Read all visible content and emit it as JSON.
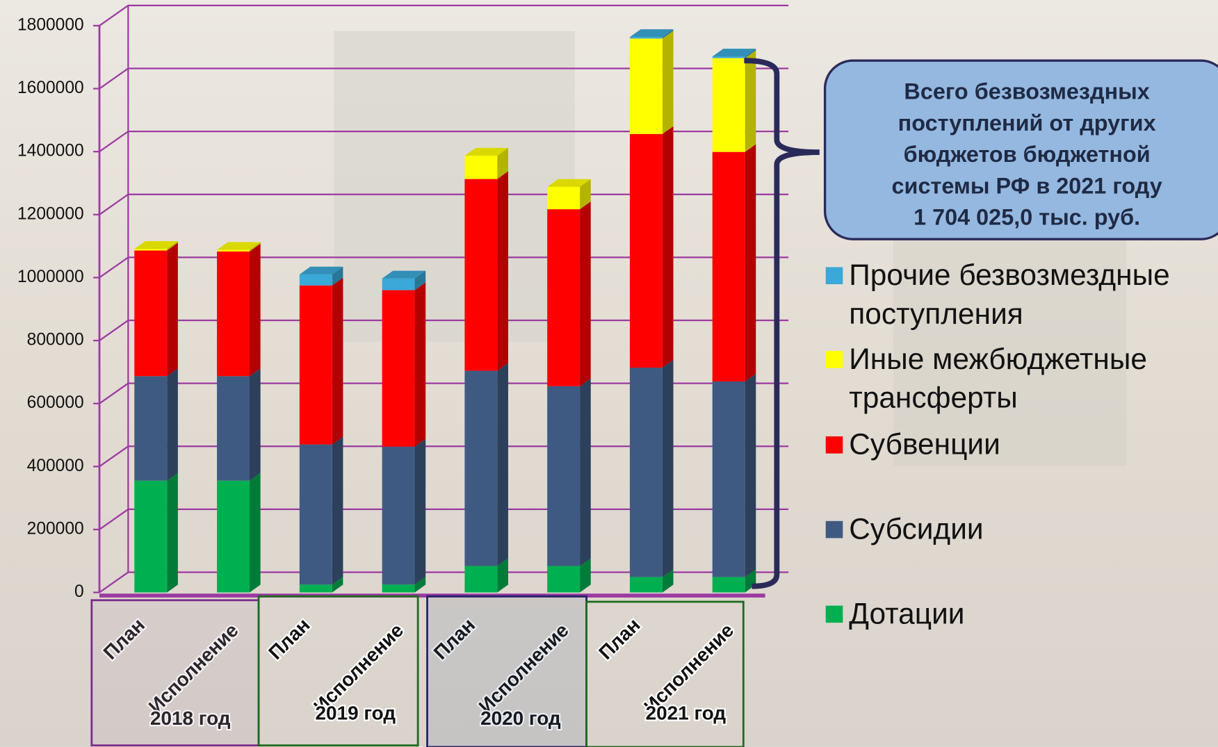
{
  "chart_data": {
    "type": "bar3d_stacked",
    "categories": [
      "План",
      "Исполнение",
      "План",
      "Исполнение",
      "План",
      "Исполнение",
      "План",
      "Исполнение"
    ],
    "groups": [
      "2018 год",
      "2019 год",
      "2020 год",
      "2021 год"
    ],
    "series": [
      {
        "name": "Дотации",
        "color": "#00b050",
        "values": [
          355000,
          355000,
          25000,
          25000,
          84000,
          84000,
          49000,
          49000
        ]
      },
      {
        "name": "Субсидии",
        "color": "#3f5a82",
        "values": [
          332000,
          332000,
          445000,
          438000,
          620000,
          571000,
          665000,
          621000
        ]
      },
      {
        "name": "Субвенции",
        "color": "#ff0000",
        "values": [
          399000,
          396000,
          505000,
          497000,
          609000,
          562000,
          742000,
          729000
        ]
      },
      {
        "name": "Иные межбюджетные трансферты",
        "color": "#ffff00",
        "values": [
          5000,
          5000,
          0,
          0,
          74000,
          71000,
          303000,
          298000
        ]
      },
      {
        "name": "Прочие безвозмездные поступления",
        "color": "#3aa8d8",
        "values": [
          0,
          0,
          35000,
          37000,
          0,
          0,
          5000,
          5000
        ]
      }
    ],
    "ylim": [
      0,
      1800000
    ],
    "yticks": [
      0,
      200000,
      400000,
      600000,
      800000,
      1000000,
      1200000,
      1400000,
      1600000,
      1800000
    ],
    "grid": true,
    "annotation": [
      "Всего безвозмездных",
      "поступлений от  других",
      "бюджетов бюджетной",
      "системы РФ в 2021 году",
      "1 704 025,0 тыс. руб."
    ]
  }
}
